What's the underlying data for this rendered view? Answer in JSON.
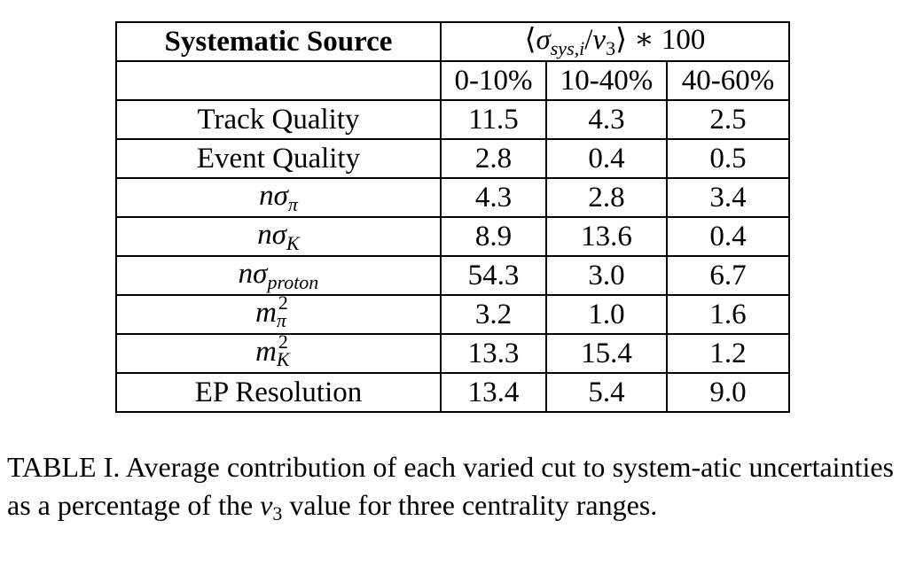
{
  "table": {
    "header_source": "Systematic Source",
    "header_metric": {
      "open": "⟨",
      "sigma": "σ",
      "sigma_sub": "sys,i",
      "slash": "/",
      "v": "v",
      "v_sub": "3",
      "close": "⟩",
      "rest": " ∗ 100"
    },
    "centralities": [
      "0-10%",
      "10-40%",
      "40-60%"
    ],
    "rows": [
      {
        "label_text": "Track Quality",
        "values": [
          "11.5",
          "4.3",
          "2.5"
        ]
      },
      {
        "label_text": "Event Quality",
        "values": [
          "2.8",
          "0.4",
          "0.5"
        ]
      },
      {
        "label_main": "nσ",
        "label_sub": "π",
        "values": [
          "4.3",
          "2.8",
          "3.4"
        ]
      },
      {
        "label_main": "nσ",
        "label_sub": "K",
        "values": [
          "8.9",
          "13.6",
          "0.4"
        ]
      },
      {
        "label_main": "nσ",
        "label_sub": "proton",
        "values": [
          "54.3",
          "3.0",
          "6.7"
        ]
      },
      {
        "label_main": "m",
        "label_sup": "2",
        "label_sub": "π",
        "values": [
          "3.2",
          "1.0",
          "1.6"
        ]
      },
      {
        "label_main": "m",
        "label_sup": "2",
        "label_sub": "K",
        "values": [
          "13.3",
          "15.4",
          "1.2"
        ]
      },
      {
        "label_text": "EP Resolution",
        "values": [
          "13.4",
          "5.4",
          "9.0"
        ]
      }
    ]
  },
  "caption": {
    "before": "TABLE I. Average contribution of each varied cut to system-atic uncertainties as a percentage of the ",
    "v": "v",
    "v_sub": "3",
    "after": " value for three centrality ranges."
  }
}
